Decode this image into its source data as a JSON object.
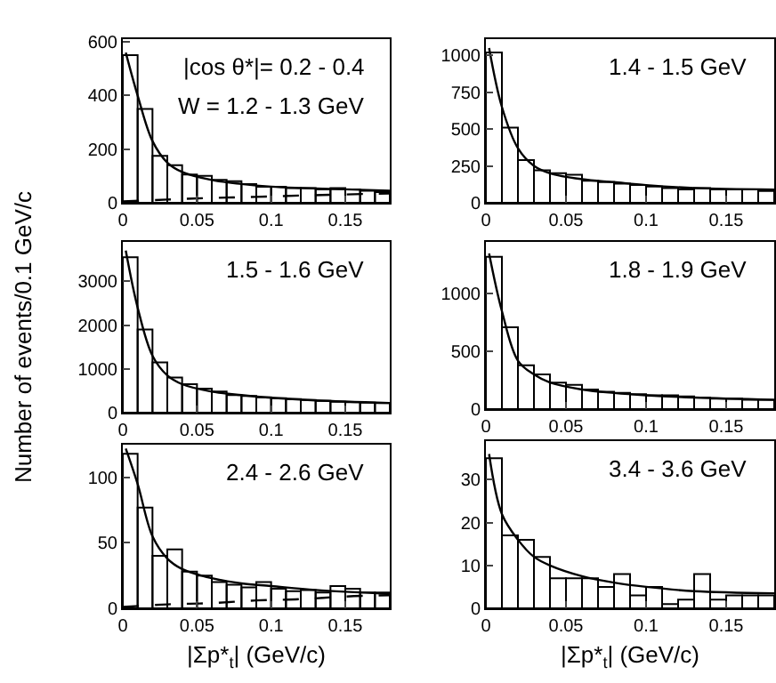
{
  "chart_data": [
    {
      "type": "histogram",
      "bins": [
        0,
        0.01,
        0.02,
        0.03,
        0.04,
        0.05,
        0.06,
        0.07,
        0.08,
        0.09,
        0.1,
        0.11,
        0.12,
        0.13,
        0.14,
        0.15,
        0.16,
        0.17,
        0.18
      ],
      "values": [
        550,
        350,
        175,
        140,
        105,
        100,
        85,
        80,
        70,
        60,
        60,
        55,
        55,
        50,
        55,
        50,
        45,
        40
      ],
      "color": "#000000",
      "xlim": [
        0,
        0.18
      ],
      "xticks": [
        0,
        0.05,
        0.1,
        0.15
      ],
      "ylim": [
        0,
        610
      ],
      "yticks": [
        0,
        200,
        400,
        600
      ],
      "annotations": [
        "|cos θ*|= 0.2 - 0.4",
        "W = 1.2 - 1.3 GeV"
      ],
      "series": [
        {
          "type": "line",
          "color": "#000000",
          "x": [
            0.002,
            0.01,
            0.02,
            0.03,
            0.04,
            0.06,
            0.08,
            0.1,
            0.12,
            0.15,
            0.18
          ],
          "values": [
            560,
            400,
            230,
            150,
            115,
            85,
            70,
            60,
            55,
            50,
            45
          ]
        },
        {
          "type": "line",
          "line_style": "dashed",
          "color": "#000000",
          "x": [
            0,
            0.03,
            0.06,
            0.09,
            0.12,
            0.15,
            0.18
          ],
          "values": [
            5,
            12,
            18,
            22,
            27,
            31,
            35
          ]
        }
      ]
    },
    {
      "type": "histogram",
      "bins": [
        0,
        0.01,
        0.02,
        0.03,
        0.04,
        0.05,
        0.06,
        0.07,
        0.08,
        0.09,
        0.1,
        0.11,
        0.12,
        0.13,
        0.14,
        0.15,
        0.16,
        0.17,
        0.18
      ],
      "values": [
        1020,
        510,
        290,
        220,
        200,
        190,
        150,
        140,
        130,
        120,
        110,
        100,
        90,
        100,
        90,
        90,
        90,
        80
      ],
      "color": "#000000",
      "xlim": [
        0,
        0.18
      ],
      "xticks": [
        0,
        0.05,
        0.1,
        0.15
      ],
      "ylim": [
        0,
        1110
      ],
      "yticks": [
        0,
        250,
        500,
        750,
        1000
      ],
      "annotations": [
        "1.4 - 1.5 GeV"
      ],
      "series": [
        {
          "type": "line",
          "color": "#000000",
          "x": [
            0.002,
            0.01,
            0.02,
            0.03,
            0.04,
            0.06,
            0.08,
            0.1,
            0.13,
            0.18
          ],
          "values": [
            1050,
            650,
            370,
            250,
            200,
            160,
            140,
            120,
            100,
            90
          ]
        }
      ]
    },
    {
      "type": "histogram",
      "bins": [
        0,
        0.01,
        0.02,
        0.03,
        0.04,
        0.05,
        0.06,
        0.07,
        0.08,
        0.09,
        0.1,
        0.11,
        0.12,
        0.13,
        0.14,
        0.15,
        0.16,
        0.17,
        0.18
      ],
      "values": [
        3550,
        1900,
        1150,
        800,
        650,
        550,
        480,
        400,
        380,
        350,
        330,
        310,
        290,
        270,
        250,
        240,
        230,
        220
      ],
      "color": "#000000",
      "xlim": [
        0,
        0.18
      ],
      "xticks": [
        0,
        0.05,
        0.1,
        0.15
      ],
      "ylim": [
        0,
        3900
      ],
      "yticks": [
        0,
        1000,
        2000,
        3000
      ],
      "ylabel": "Number of events/0.1 GeV/c",
      "annotations": [
        "1.5 - 1.6 GeV"
      ],
      "series": [
        {
          "type": "line",
          "color": "#000000",
          "x": [
            0.002,
            0.01,
            0.02,
            0.03,
            0.04,
            0.06,
            0.08,
            0.1,
            0.13,
            0.18
          ],
          "values": [
            3700,
            2400,
            1300,
            850,
            650,
            480,
            400,
            340,
            280,
            220
          ]
        }
      ]
    },
    {
      "type": "histogram",
      "bins": [
        0,
        0.01,
        0.02,
        0.03,
        0.04,
        0.05,
        0.06,
        0.07,
        0.08,
        0.09,
        0.1,
        0.11,
        0.12,
        0.13,
        0.14,
        0.15,
        0.16,
        0.17,
        0.18
      ],
      "values": [
        1320,
        710,
        380,
        300,
        230,
        210,
        170,
        150,
        140,
        130,
        120,
        120,
        110,
        100,
        90,
        90,
        80,
        80
      ],
      "color": "#000000",
      "xlim": [
        0,
        0.18
      ],
      "xticks": [
        0,
        0.05,
        0.1,
        0.15
      ],
      "ylim": [
        0,
        1450
      ],
      "yticks": [
        0,
        500,
        1000
      ],
      "annotations": [
        "1.8 - 1.9 GeV"
      ],
      "series": [
        {
          "type": "line",
          "color": "#000000",
          "x": [
            0.002,
            0.01,
            0.02,
            0.03,
            0.04,
            0.06,
            0.08,
            0.1,
            0.13,
            0.18
          ],
          "values": [
            1350,
            850,
            420,
            300,
            230,
            170,
            140,
            120,
            100,
            80
          ]
        }
      ]
    },
    {
      "type": "histogram",
      "bins": [
        0,
        0.01,
        0.02,
        0.03,
        0.04,
        0.05,
        0.06,
        0.07,
        0.08,
        0.09,
        0.1,
        0.11,
        0.12,
        0.13,
        0.14,
        0.15,
        0.16,
        0.17,
        0.18
      ],
      "values": [
        118,
        77,
        40,
        45,
        28,
        25,
        20,
        18,
        16,
        20,
        15,
        13,
        14,
        12,
        17,
        15,
        12,
        12
      ],
      "color": "#000000",
      "xlim": [
        0,
        0.18
      ],
      "xticks": [
        0,
        0.05,
        0.1,
        0.15
      ],
      "ylim": [
        0,
        125
      ],
      "yticks": [
        0,
        50,
        100
      ],
      "xlabel": "|Σp*$_{t}$| (GeV/c)",
      "annotations": [
        "2.4 - 2.6 GeV"
      ],
      "series": [
        {
          "type": "line",
          "color": "#000000",
          "x": [
            0.002,
            0.01,
            0.02,
            0.03,
            0.04,
            0.06,
            0.08,
            0.1,
            0.13,
            0.18
          ],
          "values": [
            122,
            95,
            55,
            38,
            30,
            23,
            19,
            17,
            14,
            11
          ]
        },
        {
          "type": "line",
          "line_style": "dashed",
          "color": "#000000",
          "x": [
            0,
            0.03,
            0.06,
            0.09,
            0.12,
            0.15,
            0.18
          ],
          "values": [
            1,
            3,
            4,
            6,
            7,
            9,
            10
          ]
        }
      ]
    },
    {
      "type": "histogram",
      "bins": [
        0,
        0.01,
        0.02,
        0.03,
        0.04,
        0.05,
        0.06,
        0.07,
        0.08,
        0.09,
        0.1,
        0.11,
        0.12,
        0.13,
        0.14,
        0.15,
        0.16,
        0.17,
        0.18
      ],
      "values": [
        35,
        17,
        16,
        12,
        7,
        7,
        7,
        5,
        8,
        3,
        5,
        1,
        2,
        8,
        2,
        3,
        3,
        3
      ],
      "color": "#000000",
      "xlim": [
        0,
        0.18
      ],
      "xticks": [
        0,
        0.05,
        0.1,
        0.15
      ],
      "ylim": [
        0,
        39
      ],
      "yticks": [
        0,
        10,
        20,
        30
      ],
      "xlabel": "|Σp*$_{t}$| (GeV/c)",
      "annotations": [
        "3.4 - 3.6 GeV"
      ],
      "series": [
        {
          "type": "line",
          "color": "#000000",
          "x": [
            0.002,
            0.01,
            0.02,
            0.03,
            0.04,
            0.06,
            0.08,
            0.1,
            0.13,
            0.18
          ],
          "values": [
            36,
            22,
            16,
            12,
            10,
            7.5,
            6,
            5,
            4,
            3.5
          ]
        }
      ]
    }
  ]
}
